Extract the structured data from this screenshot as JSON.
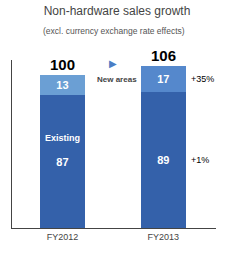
{
  "chart_data": {
    "type": "bar",
    "title": "Non-hardware sales growth",
    "subtitle": "(excl. currency exchange rate effects)",
    "categories": [
      "FY2012",
      "FY2013"
    ],
    "series": [
      {
        "name": "Existing",
        "color": "#3461AA",
        "values": [
          87,
          89
        ]
      },
      {
        "name": "New areas",
        "colors": [
          "#6B9FD4",
          "#5588CC"
        ],
        "values": [
          13,
          17
        ]
      }
    ],
    "stacked": true,
    "data_labels": true,
    "totals": [
      100,
      106
    ],
    "annotations": [
      {
        "text": "+35%",
        "series": "New areas"
      },
      {
        "text": "+1%",
        "series": "Existing"
      }
    ],
    "arrow": {
      "text": "▶",
      "color": "#4A7EC5"
    },
    "ylim": [
      0,
      110
    ],
    "yticks": [],
    "tick_labels": "x",
    "grid": false
  }
}
